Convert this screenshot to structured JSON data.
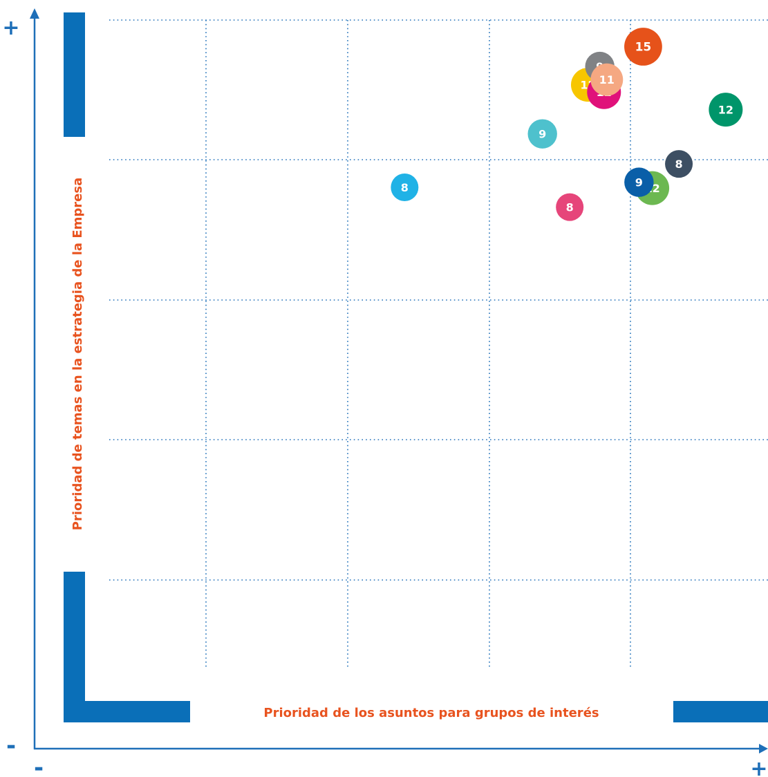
{
  "chart_data": {
    "type": "scatter",
    "title": "",
    "xlabel": "Prioridad de los asuntos para grupos de interés",
    "ylabel": "Prioridad de temas en la estrategia de la Empresa",
    "x_axis": {
      "min_label": "-",
      "max_label": "+"
    },
    "y_axis": {
      "min_label": "-",
      "max_label": "+"
    },
    "xlim": [
      0,
      100
    ],
    "ylim": [
      0,
      100
    ],
    "grid": true,
    "legend": "none",
    "colors": {
      "axis": "#1e6fb8",
      "grid": "#1e6fb8",
      "accent_bars": "#0a6fb8",
      "axis_title": "#e8531f",
      "sign": "#1e6fb8"
    },
    "points": [
      {
        "label": "8",
        "x": 52.9,
        "y": 76.6,
        "size": 8,
        "color": "#20b2e6"
      },
      {
        "label": "9",
        "x": 72.6,
        "y": 83.9,
        "size": 9,
        "color": "#4ec1cd"
      },
      {
        "label": "8",
        "x": 76.5,
        "y": 73.9,
        "size": 8,
        "color": "#e6457a"
      },
      {
        "label": "12",
        "x": 79.1,
        "y": 90.6,
        "size": 12,
        "color": "#f7c600"
      },
      {
        "label": "12",
        "x": 81.4,
        "y": 89.6,
        "size": 12,
        "color": "#e0117a"
      },
      {
        "label": "9",
        "x": 80.8,
        "y": 93.1,
        "size": 9,
        "color": "#808285"
      },
      {
        "label": "11",
        "x": 81.8,
        "y": 91.3,
        "size": 11,
        "color": "#f5a882"
      },
      {
        "label": "15",
        "x": 87.0,
        "y": 95.8,
        "size": 15,
        "color": "#e6521a"
      },
      {
        "label": "12",
        "x": 88.3,
        "y": 76.5,
        "size": 12,
        "color": "#6cb851"
      },
      {
        "label": "9",
        "x": 86.4,
        "y": 77.3,
        "size": 9,
        "color": "#0a5fa8"
      },
      {
        "label": "8",
        "x": 92.1,
        "y": 79.8,
        "size": 8,
        "color": "#3d4f63"
      },
      {
        "label": "12",
        "x": 98.8,
        "y": 87.2,
        "size": 12,
        "color": "#00956a"
      }
    ]
  }
}
